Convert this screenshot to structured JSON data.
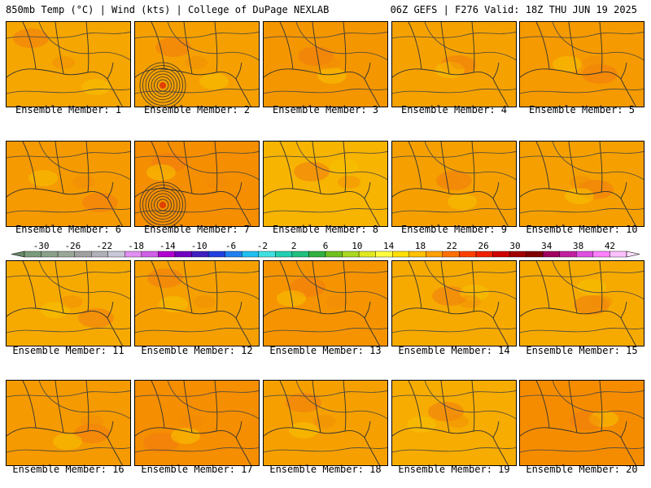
{
  "header": {
    "left": "850mb Temp (°C) | Wind (kts) | College of DuPage NEXLAB",
    "right": "06Z GEFS | F276 Valid: 18Z THU JUN 19 2025"
  },
  "colorbar": {
    "labels": [
      "-30",
      "-26",
      "-22",
      "-18",
      "-14",
      "-10",
      "-6",
      "-2",
      "2",
      "6",
      "10",
      "14",
      "18",
      "22",
      "26",
      "30",
      "34",
      "38",
      "42"
    ],
    "colors": [
      "#7a9a7a",
      "#8aa08a",
      "#9aa89a",
      "#a0a0a0",
      "#b0b0b8",
      "#c8c8d8",
      "#e090f0",
      "#d060e8",
      "#b000d0",
      "#7000c0",
      "#4020c0",
      "#2040e0",
      "#2080f0",
      "#20c0f0",
      "#40e0e0",
      "#20d0b0",
      "#20c080",
      "#30b040",
      "#70c020",
      "#a8d820",
      "#e0e820",
      "#ffff40",
      "#ffe000",
      "#ffc000",
      "#ffa000",
      "#ff7000",
      "#ff4000",
      "#f02000",
      "#d00000",
      "#a00000",
      "#800000",
      "#a00060",
      "#c020a0",
      "#e050e0",
      "#ff80ff",
      "#ffc0ff"
    ]
  },
  "panels": [
    {
      "caption": "Ensemble Member: 1",
      "base": "#f5a600",
      "low": false
    },
    {
      "caption": "Ensemble Member: 2",
      "base": "#f5a000",
      "low": true
    },
    {
      "caption": "Ensemble Member: 3",
      "base": "#f49600",
      "low": false
    },
    {
      "caption": "Ensemble Member: 4",
      "base": "#f5a200",
      "low": false
    },
    {
      "caption": "Ensemble Member: 5",
      "base": "#f59a00",
      "low": false
    },
    {
      "caption": "Ensemble Member: 6",
      "base": "#f59a00",
      "low": false
    },
    {
      "caption": "Ensemble Member: 7",
      "base": "#f58e00",
      "low": true
    },
    {
      "caption": "Ensemble Member: 8",
      "base": "#f7b400",
      "low": false
    },
    {
      "caption": "Ensemble Member: 9",
      "base": "#f5a000",
      "low": false
    },
    {
      "caption": "Ensemble Member: 10",
      "base": "#f5a000",
      "low": false
    },
    {
      "caption": "Ensemble Member: 11",
      "base": "#f6aa00",
      "low": false
    },
    {
      "caption": "Ensemble Member: 12",
      "base": "#f5a000",
      "low": false
    },
    {
      "caption": "Ensemble Member: 13",
      "base": "#f59400",
      "low": false
    },
    {
      "caption": "Ensemble Member: 14",
      "base": "#f6aa00",
      "low": false
    },
    {
      "caption": "Ensemble Member: 15",
      "base": "#f6aa00",
      "low": false
    },
    {
      "caption": "Ensemble Member: 16",
      "base": "#f59a00",
      "low": false
    },
    {
      "caption": "Ensemble Member: 17",
      "base": "#f58e00",
      "low": false
    },
    {
      "caption": "Ensemble Member: 18",
      "base": "#f5a000",
      "low": false
    },
    {
      "caption": "Ensemble Member: 19",
      "base": "#f6ac00",
      "low": false
    },
    {
      "caption": "Ensemble Member: 20",
      "base": "#f58c00",
      "low": false
    }
  ]
}
